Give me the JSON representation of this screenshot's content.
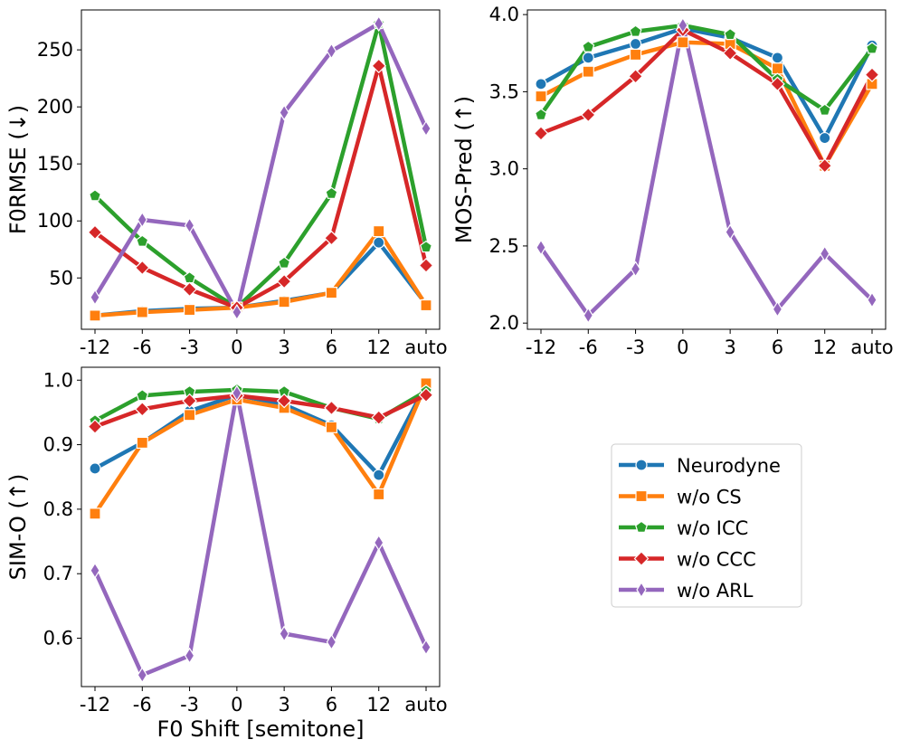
{
  "chart_data": [
    {
      "type": "line",
      "id": "f0rmse",
      "title": "",
      "xlabel": "",
      "ylabel": "F0RMSE (↓)",
      "categories": [
        "-12",
        "-6",
        "-3",
        "0",
        "3",
        "6",
        "12",
        "auto"
      ],
      "ylim": [
        5,
        285
      ],
      "yticks": [
        50,
        100,
        150,
        200,
        250
      ],
      "series": [
        {
          "name": "Neurodyne",
          "values": [
            17,
            21,
            23,
            24,
            30,
            37,
            81,
            27
          ]
        },
        {
          "name": "w/o CS",
          "values": [
            17,
            20,
            22,
            24,
            29,
            37,
            91,
            26
          ]
        },
        {
          "name": "w/o ICC",
          "values": [
            122,
            82,
            50,
            24,
            63,
            124,
            273,
            77
          ]
        },
        {
          "name": "w/o CCC",
          "values": [
            90,
            59,
            40,
            24,
            47,
            85,
            236,
            61
          ]
        },
        {
          "name": "w/o ARL",
          "values": [
            33,
            101,
            96,
            20,
            195,
            249,
            273,
            181
          ]
        }
      ]
    },
    {
      "type": "line",
      "id": "mos-pred",
      "title": "",
      "xlabel": "",
      "ylabel": "MOS-Pred (↑)",
      "categories": [
        "-12",
        "-6",
        "-3",
        "0",
        "3",
        "6",
        "12",
        "auto"
      ],
      "ylim": [
        1.96,
        4.03
      ],
      "yticks": [
        2.0,
        2.5,
        3.0,
        3.5,
        4.0
      ],
      "yticklabels": [
        "2.0",
        "2.5",
        "3.0",
        "3.5",
        "4.0"
      ],
      "series": [
        {
          "name": "Neurodyne",
          "values": [
            3.55,
            3.72,
            3.81,
            3.91,
            3.85,
            3.72,
            3.2,
            3.8
          ]
        },
        {
          "name": "w/o CS",
          "values": [
            3.47,
            3.63,
            3.74,
            3.82,
            3.81,
            3.65,
            3.02,
            3.55
          ]
        },
        {
          "name": "w/o ICC",
          "values": [
            3.35,
            3.79,
            3.89,
            3.93,
            3.87,
            3.58,
            3.38,
            3.78
          ]
        },
        {
          "name": "w/o CCC",
          "values": [
            3.23,
            3.35,
            3.6,
            3.9,
            3.75,
            3.55,
            3.02,
            3.61
          ]
        },
        {
          "name": "w/o ARL",
          "values": [
            2.49,
            2.05,
            2.35,
            3.93,
            2.59,
            2.09,
            2.45,
            2.15
          ]
        }
      ]
    },
    {
      "type": "line",
      "id": "sim-o",
      "title": "",
      "xlabel": "F0 Shift [semitone]",
      "ylabel": "SIM-O (↑)",
      "categories": [
        "-12",
        "-6",
        "-3",
        "0",
        "3",
        "6",
        "12",
        "auto"
      ],
      "ylim": [
        0.525,
        1.02
      ],
      "yticks": [
        0.6,
        0.7,
        0.8,
        0.9,
        1.0
      ],
      "yticklabels": [
        "0.6",
        "0.7",
        "0.8",
        "0.9",
        "1.0"
      ],
      "series": [
        {
          "name": "Neurodyne",
          "values": [
            0.863,
            0.903,
            0.952,
            0.977,
            0.962,
            0.93,
            0.853,
            0.993
          ]
        },
        {
          "name": "w/o CS",
          "values": [
            0.793,
            0.903,
            0.946,
            0.97,
            0.957,
            0.927,
            0.823,
            0.995
          ]
        },
        {
          "name": "w/o ICC",
          "values": [
            0.937,
            0.976,
            0.982,
            0.985,
            0.982,
            0.957,
            0.94,
            0.983
          ]
        },
        {
          "name": "w/o CCC",
          "values": [
            0.928,
            0.955,
            0.968,
            0.976,
            0.968,
            0.957,
            0.942,
            0.977
          ]
        },
        {
          "name": "w/o ARL",
          "values": [
            0.705,
            0.543,
            0.573,
            0.98,
            0.607,
            0.594,
            0.748,
            0.586
          ]
        }
      ]
    }
  ],
  "legend": {
    "placement": "lower-right",
    "entries": [
      {
        "name": "Neurodyne",
        "color": "#1f77b4",
        "marker": "circle"
      },
      {
        "name": "w/o CS",
        "color": "#ff7f0e",
        "marker": "square"
      },
      {
        "name": "w/o ICC",
        "color": "#2ca02c",
        "marker": "pentagon"
      },
      {
        "name": "w/o CCC",
        "color": "#d62728",
        "marker": "diamond"
      },
      {
        "name": "w/o ARL",
        "color": "#9467bd",
        "marker": "thin-diamond"
      }
    ]
  }
}
